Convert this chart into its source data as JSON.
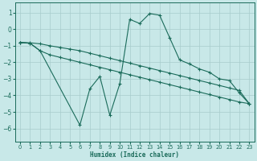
{
  "xlabel": "Humidex (Indice chaleur)",
  "ylabel": "",
  "background_color": "#c8e8e8",
  "grid_color": "#a8cccc",
  "line_color": "#1a6b5a",
  "xlim": [
    -0.5,
    23.5
  ],
  "ylim": [
    -6.8,
    1.6
  ],
  "yticks": [
    1,
    0,
    -1,
    -2,
    -3,
    -4,
    -5,
    -6
  ],
  "xticks": [
    0,
    1,
    2,
    3,
    4,
    5,
    6,
    7,
    8,
    9,
    10,
    11,
    12,
    13,
    14,
    15,
    16,
    17,
    18,
    19,
    20,
    21,
    22,
    23
  ],
  "series": [
    {
      "x": [
        0,
        1,
        2,
        3,
        4,
        5,
        6,
        7,
        8,
        9,
        10,
        11,
        12,
        13,
        14,
        15,
        16,
        17,
        18,
        19,
        20,
        21,
        22,
        23
      ],
      "y": [
        -0.8,
        -0.82,
        -0.88,
        -1.0,
        -1.1,
        -1.2,
        -1.3,
        -1.45,
        -1.6,
        -1.75,
        -1.9,
        -2.05,
        -2.2,
        -2.35,
        -2.5,
        -2.65,
        -2.8,
        -2.95,
        -3.1,
        -3.25,
        -3.4,
        -3.55,
        -3.7,
        -4.5
      ]
    },
    {
      "x": [
        0,
        1,
        2,
        3,
        4,
        5,
        6,
        7,
        8,
        9,
        10,
        11,
        12,
        13,
        14,
        15,
        16,
        17,
        18,
        19,
        20,
        21,
        22,
        23
      ],
      "y": [
        -0.8,
        -0.85,
        -1.3,
        -1.55,
        -1.7,
        -1.85,
        -2.0,
        -2.15,
        -2.3,
        -2.45,
        -2.6,
        -2.75,
        -2.9,
        -3.05,
        -3.2,
        -3.35,
        -3.5,
        -3.65,
        -3.8,
        -3.95,
        -4.1,
        -4.25,
        -4.4,
        -4.5
      ]
    },
    {
      "x": [
        0,
        1,
        2,
        6,
        7,
        8,
        9,
        10,
        11,
        12,
        13,
        14,
        15,
        16,
        17,
        18,
        19,
        20,
        21,
        22,
        23
      ],
      "y": [
        -0.8,
        -0.85,
        -1.3,
        -5.8,
        -3.6,
        -2.85,
        -5.2,
        -3.3,
        0.6,
        0.35,
        0.95,
        0.85,
        -0.5,
        -1.85,
        -2.1,
        -2.4,
        -2.6,
        -3.0,
        -3.1,
        -3.85,
        -4.5
      ]
    }
  ]
}
